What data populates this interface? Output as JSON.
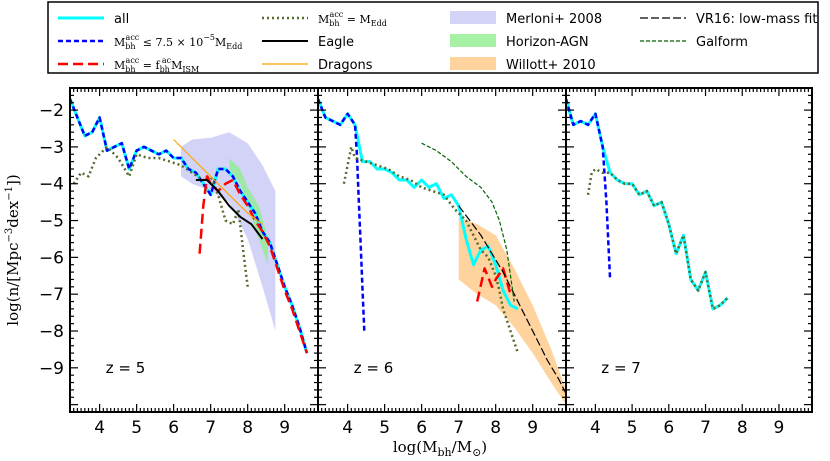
{
  "chart_data": {
    "type": "line",
    "xlabel": "log(M_bh/M_sun)",
    "ylabel": "log(n/[Mpc^-3 dex^-1])",
    "xlim": [
      3.2,
      9.9
    ],
    "ylim": [
      -10.2,
      -1.4
    ],
    "xticks": [
      "4",
      "5",
      "6",
      "7",
      "8",
      "9"
    ],
    "yticks": [
      "-2",
      "-3",
      "-4",
      "-5",
      "-6",
      "-7",
      "-8",
      "-9"
    ],
    "xtick_values": [
      4,
      5,
      6,
      7,
      8,
      9
    ],
    "ytick_values": [
      -2,
      -3,
      -4,
      -5,
      -6,
      -7,
      -8,
      -9
    ],
    "legend": {
      "placement": "top",
      "entries": [
        {
          "key": "all",
          "label": "all",
          "color": "#00ffff",
          "dash": "",
          "width": 3
        },
        {
          "key": "low",
          "label": "M_bh^acc ≤ 7.5×10^-5 M_Edd",
          "math": [
            "M",
            "bh",
            "acc",
            "≤ 7.5 × 10",
            "−5",
            "M",
            "Edd"
          ],
          "color": "#0000ff",
          "dash": "5,3",
          "width": 2.5
        },
        {
          "key": "ism",
          "label": "M_bh^acc = f_bh^ac M_ISM",
          "math": [
            "M",
            "bh",
            "acc",
            "= f",
            "bh",
            "ac",
            "M",
            "ISM"
          ],
          "color": "#ff0000",
          "dash": "10,5",
          "width": 2.5
        },
        {
          "key": "edd",
          "label": "M_bh^acc = M_Edd",
          "math": [
            "M",
            "bh",
            "acc",
            "= M",
            "Edd"
          ],
          "color": "#556b2f",
          "dash": "2,3",
          "width": 2.5
        },
        {
          "key": "eagle",
          "label": "Eagle",
          "color": "#000000",
          "dash": "",
          "width": 2
        },
        {
          "key": "dragons",
          "label": "Dragons",
          "color": "#ffa500",
          "dash": "",
          "width": 1.2
        },
        {
          "key": "merloni",
          "label": "Merloni+ 2008",
          "color": "#c8c8f5",
          "type": "patch"
        },
        {
          "key": "horizon",
          "label": "Horizon-AGN",
          "color": "#90ee90",
          "type": "patch"
        },
        {
          "key": "willott",
          "label": "Willott+ 2010",
          "color": "#ffc884",
          "type": "patch"
        },
        {
          "key": "vr16",
          "label": "VR16: low-mass fit",
          "color": "#000000",
          "dash": "8,3",
          "width": 1.2
        },
        {
          "key": "galform",
          "label": "Galform",
          "color": "#006400",
          "dash": "4,2",
          "width": 1.2
        }
      ]
    },
    "panels": [
      {
        "z_label": "z = 5",
        "series": [
          {
            "key": "merloni",
            "type": "band",
            "x": [
              6.2,
              6.5,
              7.0,
              7.5,
              8.0,
              8.4,
              8.75
            ],
            "upper": [
              -3.0,
              -2.8,
              -2.75,
              -2.6,
              -2.9,
              -3.5,
              -4.2
            ],
            "lower": [
              -3.8,
              -4.0,
              -4.2,
              -4.5,
              -5.5,
              -6.8,
              -8.0
            ]
          },
          {
            "key": "horizon",
            "type": "band",
            "x": [
              7.5,
              7.8,
              8.0,
              8.3,
              8.55
            ],
            "upper": [
              -3.3,
              -3.6,
              -4.1,
              -4.6,
              -5.5
            ],
            "lower": [
              -3.6,
              -4.0,
              -4.6,
              -5.5,
              -6.2
            ]
          },
          {
            "key": "all",
            "x": [
              3.2,
              3.4,
              3.6,
              3.8,
              4.0,
              4.2,
              4.4,
              4.6,
              4.8,
              5.0,
              5.2,
              5.4,
              5.6,
              5.8,
              6.0,
              6.2,
              6.4,
              6.6,
              6.8,
              7.0,
              7.2,
              7.4,
              7.6,
              7.8,
              8.0,
              8.2,
              8.4,
              8.6,
              8.8,
              9.0,
              9.2,
              9.4,
              9.6
            ],
            "y": [
              -1.7,
              -2.2,
              -2.7,
              -2.6,
              -2.2,
              -3.1,
              -3.0,
              -2.9,
              -3.6,
              -3.1,
              -3.0,
              -3.1,
              -3.2,
              -3.1,
              -3.3,
              -3.3,
              -3.6,
              -3.7,
              -4.0,
              -4.3,
              -3.6,
              -3.6,
              -3.8,
              -4.2,
              -4.5,
              -4.8,
              -5.3,
              -5.6,
              -6.2,
              -6.8,
              -7.3,
              -7.9,
              -8.6
            ]
          },
          {
            "key": "low",
            "x": [
              3.2,
              3.4,
              3.6,
              3.8,
              4.0,
              4.2,
              4.4,
              4.6,
              4.8,
              5.0,
              5.2,
              5.4,
              5.6,
              5.8,
              6.0,
              6.2,
              6.4,
              6.6,
              6.8,
              7.0,
              7.2,
              7.4,
              7.6,
              7.8,
              8.0,
              8.2,
              8.4,
              8.6,
              8.8,
              9.0,
              9.2,
              9.4,
              9.6
            ],
            "y": [
              -1.7,
              -2.2,
              -2.7,
              -2.6,
              -2.2,
              -3.1,
              -3.0,
              -2.9,
              -3.6,
              -3.1,
              -3.0,
              -3.1,
              -3.2,
              -3.1,
              -3.3,
              -3.3,
              -3.6,
              -3.7,
              -4.0,
              -4.3,
              -3.6,
              -3.6,
              -3.8,
              -4.2,
              -4.5,
              -4.8,
              -5.3,
              -5.6,
              -6.2,
              -6.8,
              -7.3,
              -7.9,
              -8.6
            ]
          },
          {
            "key": "edd",
            "x": [
              3.3,
              3.5,
              3.7,
              3.9,
              4.2,
              4.5,
              4.8,
              5.0,
              5.3,
              5.6,
              5.9,
              6.2,
              6.5,
              6.8,
              7.0,
              7.2,
              7.4,
              7.6,
              7.75,
              7.9,
              8.0
            ],
            "y": [
              -4.0,
              -3.7,
              -3.8,
              -3.3,
              -3.0,
              -3.3,
              -3.8,
              -3.2,
              -3.3,
              -3.3,
              -3.4,
              -3.5,
              -3.7,
              -3.9,
              -3.8,
              -4.3,
              -5.0,
              -5.1,
              -4.7,
              -6.0,
              -6.8
            ]
          },
          {
            "key": "ism",
            "x": [
              6.7,
              6.8,
              6.9,
              7.0,
              7.2,
              7.4,
              7.6,
              7.8,
              8.0,
              8.2,
              8.4,
              8.6,
              8.8,
              9.0,
              9.2,
              9.4,
              9.6
            ],
            "y": [
              -5.9,
              -4.6,
              -3.8,
              -4.0,
              -4.2,
              -4.0,
              -3.9,
              -4.3,
              -4.6,
              -5.0,
              -5.3,
              -5.7,
              -6.3,
              -6.9,
              -7.4,
              -8.0,
              -8.6
            ]
          },
          {
            "key": "eagle",
            "x": [
              6.6,
              6.9,
              7.2,
              7.5,
              7.8,
              8.1,
              8.4
            ],
            "y": [
              -3.9,
              -3.9,
              -4.2,
              -4.6,
              -4.9,
              -5.1,
              -5.5
            ]
          },
          {
            "key": "dragons",
            "x": [
              6.0,
              6.5,
              7.0,
              7.5,
              8.0,
              8.4
            ],
            "y": [
              -2.8,
              -3.3,
              -3.8,
              -4.3,
              -4.8,
              -5.1
            ]
          }
        ]
      },
      {
        "z_label": "z = 6",
        "series": [
          {
            "key": "willott",
            "type": "band",
            "x": [
              7.0,
              7.5,
              8.0,
              8.5,
              9.0,
              9.5,
              9.9
            ],
            "upper": [
              -4.9,
              -5.1,
              -5.4,
              -6.3,
              -7.3,
              -8.5,
              -9.6
            ],
            "lower": [
              -6.6,
              -7.0,
              -7.3,
              -7.9,
              -8.6,
              -9.4,
              -10.0
            ]
          },
          {
            "key": "all",
            "x": [
              3.2,
              3.4,
              3.6,
              3.8,
              4.0,
              4.2,
              4.4,
              4.6,
              4.8,
              5.0,
              5.2,
              5.4,
              5.6,
              5.8,
              6.0,
              6.2,
              6.4,
              6.6,
              6.8,
              7.0,
              7.2,
              7.4,
              7.6,
              7.8,
              8.0,
              8.2,
              8.4,
              8.6
            ],
            "y": [
              -1.7,
              -2.2,
              -2.3,
              -2.4,
              -2.1,
              -2.4,
              -3.4,
              -3.4,
              -3.6,
              -3.6,
              -3.7,
              -3.9,
              -3.9,
              -4.1,
              -3.9,
              -4.1,
              -4.0,
              -4.4,
              -4.3,
              -4.6,
              -5.5,
              -6.2,
              -5.8,
              -5.7,
              -6.2,
              -6.9,
              -7.3,
              -7.4
            ]
          },
          {
            "key": "low",
            "x": [
              3.2,
              3.4,
              3.6,
              3.8,
              4.0,
              4.2,
              4.25,
              4.3,
              4.35,
              4.4,
              4.45
            ],
            "y": [
              -1.7,
              -2.2,
              -2.3,
              -2.4,
              -2.1,
              -2.4,
              -3.2,
              -4.4,
              -5.6,
              -6.8,
              -8.0
            ]
          },
          {
            "key": "edd",
            "x": [
              3.9,
              4.0,
              4.1,
              4.2,
              4.5,
              4.8,
              5.1,
              5.4,
              5.7,
              6.0,
              6.3,
              6.6,
              6.9,
              7.2,
              7.4,
              7.6,
              7.8,
              8.0,
              8.1,
              8.2,
              8.4,
              8.6
            ],
            "y": [
              -4.0,
              -3.5,
              -3.0,
              -3.3,
              -3.4,
              -3.5,
              -3.6,
              -3.8,
              -3.9,
              -4.1,
              -4.2,
              -4.3,
              -4.7,
              -5.0,
              -5.4,
              -5.8,
              -6.0,
              -6.5,
              -6.9,
              -7.4,
              -8.0,
              -8.6
            ]
          },
          {
            "key": "ism",
            "x": [
              7.5,
              7.7,
              7.9,
              8.0,
              8.2,
              8.4
            ],
            "y": [
              -7.2,
              -6.3,
              -6.8,
              -6.6,
              -6.3,
              -7.0
            ]
          },
          {
            "key": "vr16",
            "x": [
              7.0,
              7.3,
              7.6,
              7.9,
              8.2,
              8.5,
              8.8,
              9.1,
              9.4,
              9.7,
              9.9
            ],
            "y": [
              -4.6,
              -5.0,
              -5.4,
              -5.9,
              -6.4,
              -7.0,
              -7.6,
              -8.2,
              -8.8,
              -9.3,
              -9.7
            ]
          },
          {
            "key": "galform",
            "x": [
              6.0,
              6.4,
              6.8,
              7.2,
              7.6,
              7.9,
              8.1,
              8.3,
              8.4,
              8.5
            ],
            "y": [
              -2.9,
              -3.1,
              -3.4,
              -3.8,
              -4.1,
              -4.5,
              -5.0,
              -5.8,
              -6.5,
              -7.2
            ]
          }
        ]
      },
      {
        "z_label": "z = 7",
        "series": [
          {
            "key": "all",
            "x": [
              3.2,
              3.4,
              3.6,
              3.8,
              4.0,
              4.2,
              4.4,
              4.6,
              4.8,
              5.0,
              5.2,
              5.4,
              5.6,
              5.8,
              6.0,
              6.2,
              6.4,
              6.6,
              6.8,
              7.0,
              7.2,
              7.4,
              7.6
            ],
            "y": [
              -1.7,
              -2.4,
              -2.3,
              -2.4,
              -2.1,
              -3.0,
              -3.7,
              -3.9,
              -4.0,
              -4.0,
              -4.3,
              -4.2,
              -4.6,
              -4.5,
              -5.1,
              -5.9,
              -5.4,
              -6.6,
              -6.9,
              -6.4,
              -7.4,
              -7.3,
              -7.1
            ]
          },
          {
            "key": "low",
            "x": [
              3.2,
              3.4,
              3.6,
              3.8,
              4.0,
              4.2,
              4.3,
              4.4
            ],
            "y": [
              -1.7,
              -2.4,
              -2.3,
              -2.4,
              -2.1,
              -3.0,
              -4.5,
              -6.6
            ]
          },
          {
            "key": "edd",
            "x": [
              3.8,
              3.9,
              4.0,
              4.2,
              4.4,
              4.6,
              4.8,
              5.0,
              5.2,
              5.4,
              5.6,
              5.8,
              6.0,
              6.2,
              6.4,
              6.6,
              6.8,
              7.0,
              7.2,
              7.4,
              7.6
            ],
            "y": [
              -4.3,
              -3.7,
              -3.6,
              -3.7,
              -3.7,
              -3.9,
              -4.0,
              -4.0,
              -4.3,
              -4.2,
              -4.6,
              -4.5,
              -5.1,
              -5.9,
              -5.4,
              -6.6,
              -6.9,
              -6.4,
              -7.4,
              -7.3,
              -7.1
            ]
          }
        ]
      }
    ]
  }
}
